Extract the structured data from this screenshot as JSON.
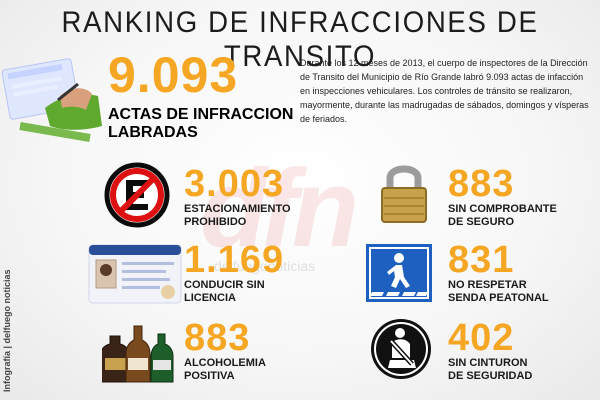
{
  "title": "RANKING DE INFRACCIONES DE TRANSITO",
  "credit": "Infografía | delfuego noticias",
  "watermark": {
    "letters": "dfn",
    "url": "delfuegonoticias"
  },
  "hero": {
    "value": "9.093",
    "label_l1": "ACTAS DE INFRACCION",
    "label_l2": "LABRADAS"
  },
  "description": "Durante los 12 meses de 2013, el cuerpo de inspectores de la Dirección de Transito del Municipio de Río Grande labró 9.093 actas de infacción en inspecciones vehiculares. Los controles de tránsito se realizaron, mayormente, durante las madrugadas de sábados, domingos y vísperas de feriados.",
  "items": [
    {
      "value": "3.003",
      "l1": "ESTACIONAMIENTO",
      "l2": "PROHIBIDO",
      "icon": "no-parking-icon"
    },
    {
      "value": "883",
      "l1": "SIN COMPROBANTE",
      "l2": "DE SEGURO",
      "icon": "padlock-icon"
    },
    {
      "value": "1.169",
      "l1": "CONDUCIR SIN",
      "l2": "LICENCIA",
      "icon": "license-card-icon"
    },
    {
      "value": "831",
      "l1": "NO RESPETAR",
      "l2": "SENDA PEATONAL",
      "icon": "pedestrian-crossing-icon"
    },
    {
      "value": "883",
      "l1": "ALCOHOLEMIA",
      "l2": "POSITIVA",
      "icon": "bottles-icon"
    },
    {
      "value": "402",
      "l1": "SIN CINTURON",
      "l2": "DE SEGURIDAD",
      "icon": "seatbelt-icon"
    }
  ],
  "colors": {
    "accent": "#f5a623",
    "text": "#1a1a1a"
  }
}
